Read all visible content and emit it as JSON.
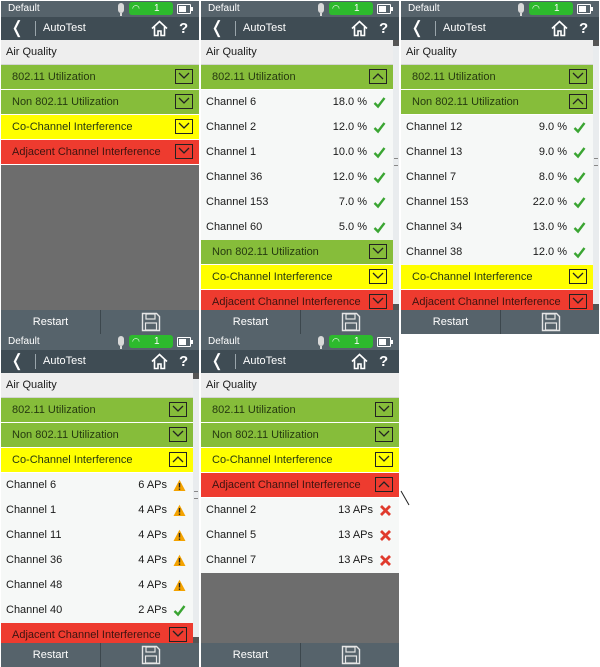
{
  "status": {
    "profile": "Default",
    "wifi_count": "1"
  },
  "titlebar": {
    "title": "AutoTest"
  },
  "section_title": "Air Quality",
  "sections": {
    "u80211": "802.11 Utilization",
    "non80211": "Non 802.11 Utilization",
    "cochannel": "Co-Channel Interference",
    "adjacent": "Adjacent Channel Interference"
  },
  "footer": {
    "restart_label": "Restart"
  },
  "colors": {
    "green": "#86bd3a",
    "yellow": "#ffff00",
    "red": "#ee3b2f",
    "check": "#3aa532",
    "warning": "#f4a300",
    "fail": "#e03b2d"
  },
  "icons": [
    "back-icon",
    "home-icon",
    "help-icon",
    "save-icon",
    "wifi-icon",
    "mic-icon",
    "battery-icon",
    "chevron-down-icon",
    "chevron-up-icon",
    "check-icon",
    "warning-icon",
    "x-icon"
  ],
  "panels": [
    {
      "id": "p1",
      "expanded": "none"
    },
    {
      "id": "p2",
      "expanded": "802.11 Utilization",
      "rows": [
        {
          "channel": "Channel 6",
          "value": "18.0 %",
          "status": "ok"
        },
        {
          "channel": "Channel 2",
          "value": "12.0 %",
          "status": "ok"
        },
        {
          "channel": "Channel 1",
          "value": "10.0 %",
          "status": "ok"
        },
        {
          "channel": "Channel 36",
          "value": "12.0 %",
          "status": "ok"
        },
        {
          "channel": "Channel 153",
          "value": "7.0 %",
          "status": "ok"
        },
        {
          "channel": "Channel 60",
          "value": "5.0 %",
          "status": "ok"
        }
      ]
    },
    {
      "id": "p3",
      "expanded": "Non 802.11 Utilization",
      "rows": [
        {
          "channel": "Channel 12",
          "value": "9.0 %",
          "status": "ok"
        },
        {
          "channel": "Channel 13",
          "value": "9.0 %",
          "status": "ok"
        },
        {
          "channel": "Channel 7",
          "value": "8.0 %",
          "status": "ok"
        },
        {
          "channel": "Channel 153",
          "value": "22.0 %",
          "status": "ok"
        },
        {
          "channel": "Channel 34",
          "value": "13.0 %",
          "status": "ok"
        },
        {
          "channel": "Channel 38",
          "value": "12.0 %",
          "status": "ok"
        }
      ]
    },
    {
      "id": "p4",
      "expanded": "Co-Channel Interference",
      "rows": [
        {
          "channel": "Channel 6",
          "value": "6 APs",
          "status": "warn"
        },
        {
          "channel": "Channel 1",
          "value": "4 APs",
          "status": "warn"
        },
        {
          "channel": "Channel 11",
          "value": "4 APs",
          "status": "warn"
        },
        {
          "channel": "Channel 36",
          "value": "4 APs",
          "status": "warn"
        },
        {
          "channel": "Channel 48",
          "value": "4 APs",
          "status": "warn"
        },
        {
          "channel": "Channel 40",
          "value": "2 APs",
          "status": "ok"
        }
      ]
    },
    {
      "id": "p5",
      "expanded": "Adjacent Channel Interference",
      "rows": [
        {
          "channel": "Channel 2",
          "value": "13 APs",
          "status": "fail"
        },
        {
          "channel": "Channel 5",
          "value": "13 APs",
          "status": "fail"
        },
        {
          "channel": "Channel 7",
          "value": "13 APs",
          "status": "fail"
        }
      ]
    }
  ]
}
